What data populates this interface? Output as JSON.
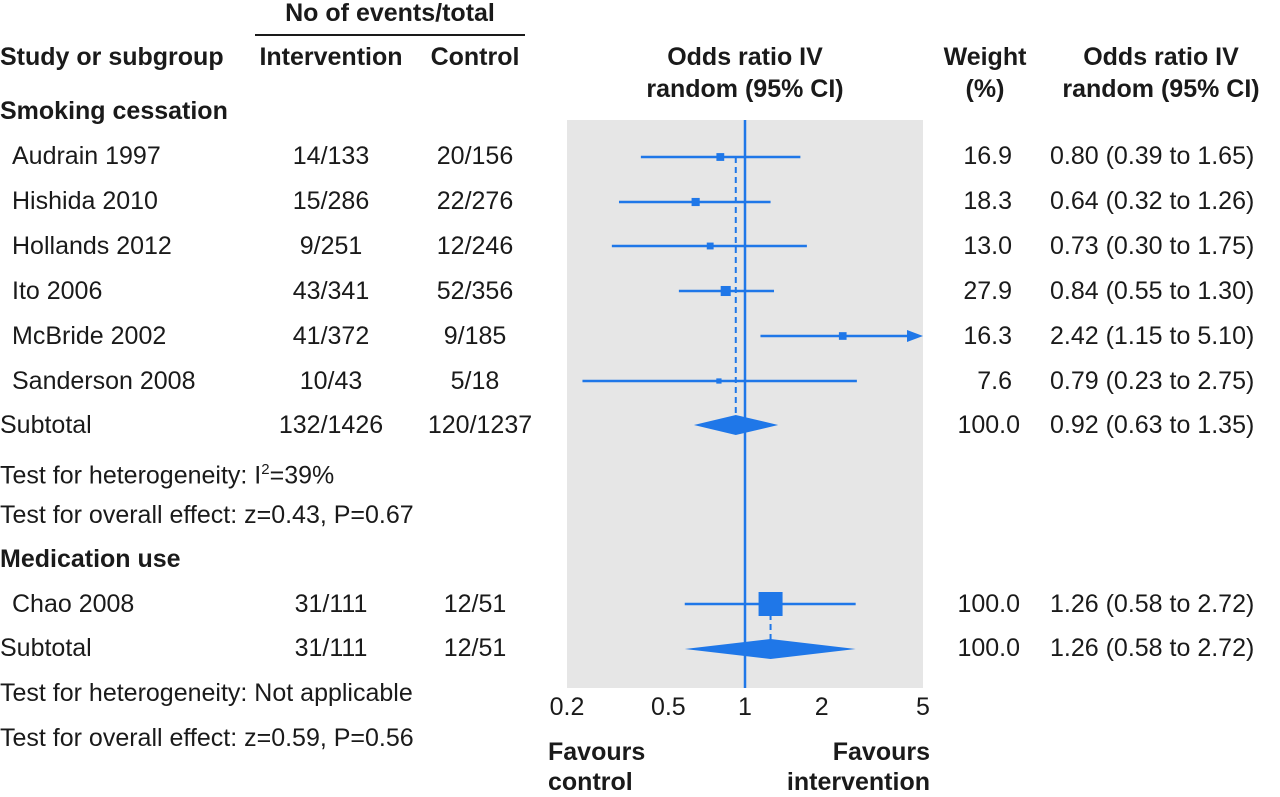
{
  "header": {
    "events_group": "No of events/total",
    "study_col": "Study or subgroup",
    "intervention_col": "Intervention",
    "control_col": "Control",
    "plot_col_line1": "Odds ratio IV",
    "plot_col_line2": "random (95% CI)",
    "weight_line1": "Weight",
    "weight_line2": "(%)",
    "or_col_line1": "Odds ratio IV",
    "or_col_line2": "random (95% CI)"
  },
  "subgroups": [
    {
      "title": "Smoking cessation",
      "subtotal_label": "Subtotal",
      "subtotal_intervention": "132/1426",
      "subtotal_control": "120/1237",
      "subtotal_weight": "100.0",
      "subtotal_or": "0.92 (0.63 to 1.35)",
      "heterogeneity_prefix": "Test for heterogeneity: I",
      "heterogeneity_sup": "2",
      "heterogeneity_suffix": "=39%",
      "overall_effect": "Test for overall effect: z=0.43, P=0.67"
    },
    {
      "title": "Medication use",
      "subtotal_label": "Subtotal",
      "subtotal_intervention": "31/111",
      "subtotal_control": "12/51",
      "subtotal_weight": "100.0",
      "subtotal_or": "1.26 (0.58 to 2.72)",
      "heterogeneity": "Test for heterogeneity: Not applicable",
      "overall_effect": "Test for overall effect: z=0.59, P=0.56"
    }
  ],
  "studies": [
    {
      "name": "Audrain 1997",
      "intervention": "14/133",
      "control": "20/156",
      "weight": "16.9",
      "or_text": "0.80 (0.39 to 1.65)"
    },
    {
      "name": "Hishida 2010",
      "intervention": "15/286",
      "control": "22/276",
      "weight": "18.3",
      "or_text": "0.64 (0.32 to 1.26)"
    },
    {
      "name": "Hollands 2012",
      "intervention": "9/251",
      "control": "12/246",
      "weight": "13.0",
      "or_text": "0.73 (0.30 to 1.75)"
    },
    {
      "name": "Ito 2006",
      "intervention": "43/341",
      "control": "52/356",
      "weight": "27.9",
      "or_text": "0.84 (0.55 to 1.30)"
    },
    {
      "name": "McBride 2002",
      "intervention": "41/372",
      "control": "9/185",
      "weight": "16.3",
      "or_text": "2.42 (1.15 to 5.10)"
    },
    {
      "name": "Sanderson 2008",
      "intervention": "10/43",
      "control": "5/18",
      "weight": "7.6",
      "or_text": "0.79 (0.23 to 2.75)"
    },
    {
      "name": "Chao 2008",
      "intervention": "31/111",
      "control": "12/51",
      "weight": "100.0",
      "or_text": "1.26 (0.58 to 2.72)"
    }
  ],
  "footer": {
    "favours_left_line1": "Favours",
    "favours_left_line2": "control",
    "favours_right_line1": "Favours",
    "favours_right_line2": "intervention"
  },
  "chart_data": {
    "type": "forest",
    "scale": "log",
    "xlim": [
      0.2,
      5
    ],
    "ticks": [
      0.2,
      0.5,
      1,
      2,
      5
    ],
    "tick_labels": [
      "0.2",
      "0.5",
      "1",
      "2",
      "5"
    ],
    "null_line": 1,
    "color": "#1f77e8",
    "panel_color": "#e6e6e6",
    "studies": [
      {
        "name": "Audrain 1997",
        "or": 0.8,
        "lo": 0.39,
        "hi": 1.65,
        "weight": 16.9,
        "group": 0
      },
      {
        "name": "Hishida 2010",
        "or": 0.64,
        "lo": 0.32,
        "hi": 1.26,
        "weight": 18.3,
        "group": 0
      },
      {
        "name": "Hollands 2012",
        "or": 0.73,
        "lo": 0.3,
        "hi": 1.75,
        "weight": 13.0,
        "group": 0
      },
      {
        "name": "Ito 2006",
        "or": 0.84,
        "lo": 0.55,
        "hi": 1.3,
        "weight": 27.9,
        "group": 0
      },
      {
        "name": "McBride 2002",
        "or": 2.42,
        "lo": 1.15,
        "hi": 5.1,
        "weight": 16.3,
        "group": 0
      },
      {
        "name": "Sanderson 2008",
        "or": 0.79,
        "lo": 0.23,
        "hi": 2.75,
        "weight": 7.6,
        "group": 0
      },
      {
        "name": "Chao 2008",
        "or": 1.26,
        "lo": 0.58,
        "hi": 2.72,
        "weight": 100.0,
        "group": 1
      }
    ],
    "subtotals": [
      {
        "label": "Subtotal",
        "or": 0.92,
        "lo": 0.63,
        "hi": 1.35,
        "group": 0
      },
      {
        "label": "Subtotal",
        "or": 1.26,
        "lo": 0.58,
        "hi": 2.72,
        "group": 1
      }
    ]
  }
}
